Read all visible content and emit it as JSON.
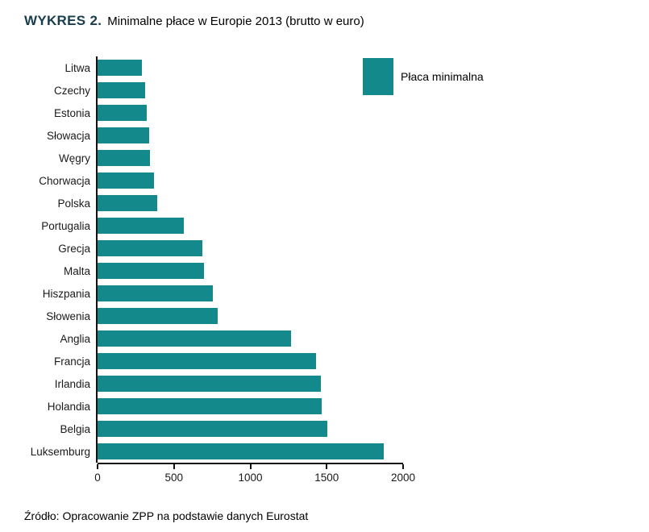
{
  "title": {
    "prefix": "WYKRES 2.",
    "text": "Minimalne płace w Europie 2013 (brutto w euro)"
  },
  "legend": {
    "label": "Płaca minimalna"
  },
  "source": "Źródło: Opracowanie ZPP na podstawie danych Eurostat",
  "colors": {
    "bar": "#14898C",
    "title_prefix": "#173D4E",
    "axis": "#111111"
  },
  "chart_data": {
    "type": "bar",
    "orientation": "horizontal",
    "title": "Minimalne płace w Europie 2013 (brutto w euro)",
    "categories": [
      "Litwa",
      "Czechy",
      "Estonia",
      "Słowacja",
      "Węgry",
      "Chorwacja",
      "Polska",
      "Portugalia",
      "Grecja",
      "Malta",
      "Hiszpania",
      "Słowenia",
      "Anglia",
      "Francja",
      "Irlandia",
      "Holandia",
      "Belgia",
      "Luksemburg"
    ],
    "values": [
      290,
      312,
      320,
      338,
      341,
      372,
      393,
      566,
      684,
      697,
      753,
      784,
      1264,
      1430,
      1462,
      1469,
      1502,
      1874
    ],
    "xlabel": "",
    "ylabel": "",
    "xlim": [
      0,
      2000
    ],
    "xticks": [
      0,
      500,
      1000,
      1500,
      2000
    ],
    "legend_entries": [
      "Płaca minimalna"
    ],
    "legend_position": "top-right",
    "grid": false
  }
}
